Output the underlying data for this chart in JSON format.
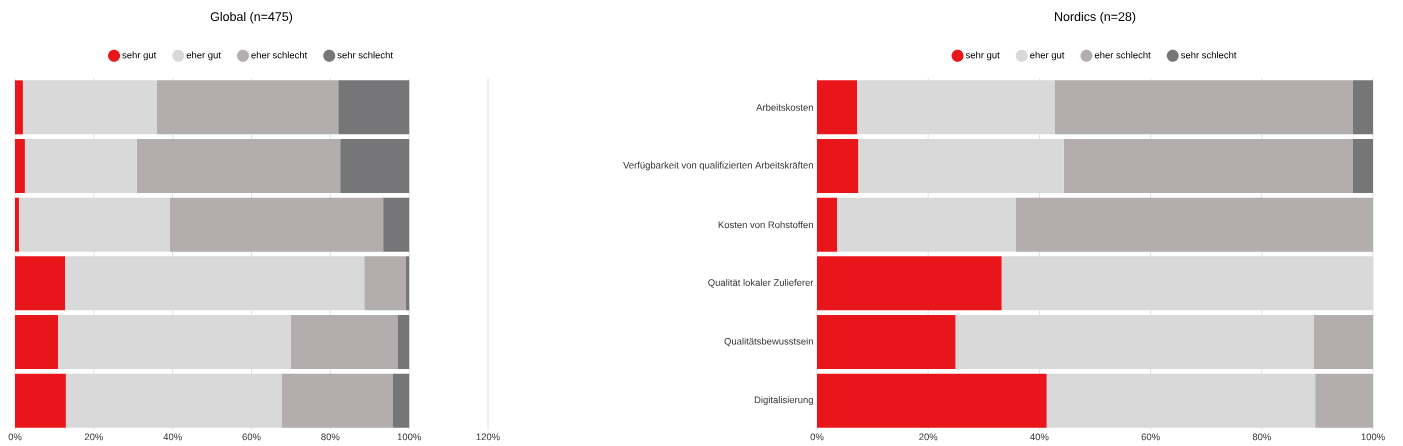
{
  "chart_data": [
    {
      "type": "bar",
      "title": "Global (n=475)",
      "orientation": "horizontal",
      "stacked": true,
      "categories": [
        null,
        null,
        null,
        null,
        null,
        null
      ],
      "series": [
        {
          "name": "sehr gut",
          "color": "#e8161b",
          "values": [
            2.0,
            2.5,
            1.0,
            12.7,
            10.9,
            12.9
          ]
        },
        {
          "name": "eher gut",
          "color": "#d9d9d9",
          "values": [
            33.9,
            28.4,
            38.2,
            75.9,
            59.0,
            54.7
          ]
        },
        {
          "name": "eher schlecht",
          "color": "#b3adad",
          "values": [
            46.1,
            51.6,
            54.2,
            10.6,
            27.1,
            28.3
          ]
        },
        {
          "name": "sehr schlecht",
          "color": "#767678",
          "values": [
            18.0,
            17.5,
            6.6,
            0.8,
            3.0,
            4.1
          ]
        }
      ],
      "xlim": [
        0,
        120
      ],
      "xticks": [
        {
          "value": 0,
          "label": "0%"
        },
        {
          "value": 20,
          "label": "20%"
        },
        {
          "value": 40,
          "label": "40%"
        },
        {
          "value": 60,
          "label": "60%"
        },
        {
          "value": 80,
          "label": "80%"
        },
        {
          "value": 100,
          "label": "100%"
        },
        {
          "value": 120,
          "label": "120%"
        }
      ],
      "grid": "x",
      "legend": "top"
    },
    {
      "type": "bar",
      "title": "Nordics (n=28)",
      "orientation": "horizontal",
      "stacked": true,
      "categories": [
        "Arbeitskosten",
        "Verfügbarkeit von qualifizierten Arbeitskräften",
        "Kosten von Rohstoffen",
        "Qualität lokaler Zulieferer",
        "Qualitätsbewusstsein",
        "Digitalisierung"
      ],
      "series": [
        {
          "name": "sehr gut",
          "color": "#e8161b",
          "values": [
            7.2,
            7.4,
            3.6,
            33.2,
            24.9,
            41.3
          ]
        },
        {
          "name": "eher gut",
          "color": "#d9d9d9",
          "values": [
            35.5,
            37.0,
            32.1,
            66.8,
            64.4,
            48.3
          ]
        },
        {
          "name": "eher schlecht",
          "color": "#b3adad",
          "values": [
            53.6,
            51.9,
            64.3,
            0,
            10.7,
            10.4
          ]
        },
        {
          "name": "sehr schlecht",
          "color": "#767678",
          "values": [
            3.7,
            3.7,
            0,
            0,
            0,
            0
          ]
        }
      ],
      "xlim": [
        0,
        100
      ],
      "xticks": [
        {
          "value": 0,
          "label": "0%"
        },
        {
          "value": 20,
          "label": "20%"
        },
        {
          "value": 40,
          "label": "40%"
        },
        {
          "value": 60,
          "label": "60%"
        },
        {
          "value": 80,
          "label": "80%"
        },
        {
          "value": 100,
          "label": "100%"
        }
      ],
      "grid": "x",
      "legend": "top"
    }
  ]
}
